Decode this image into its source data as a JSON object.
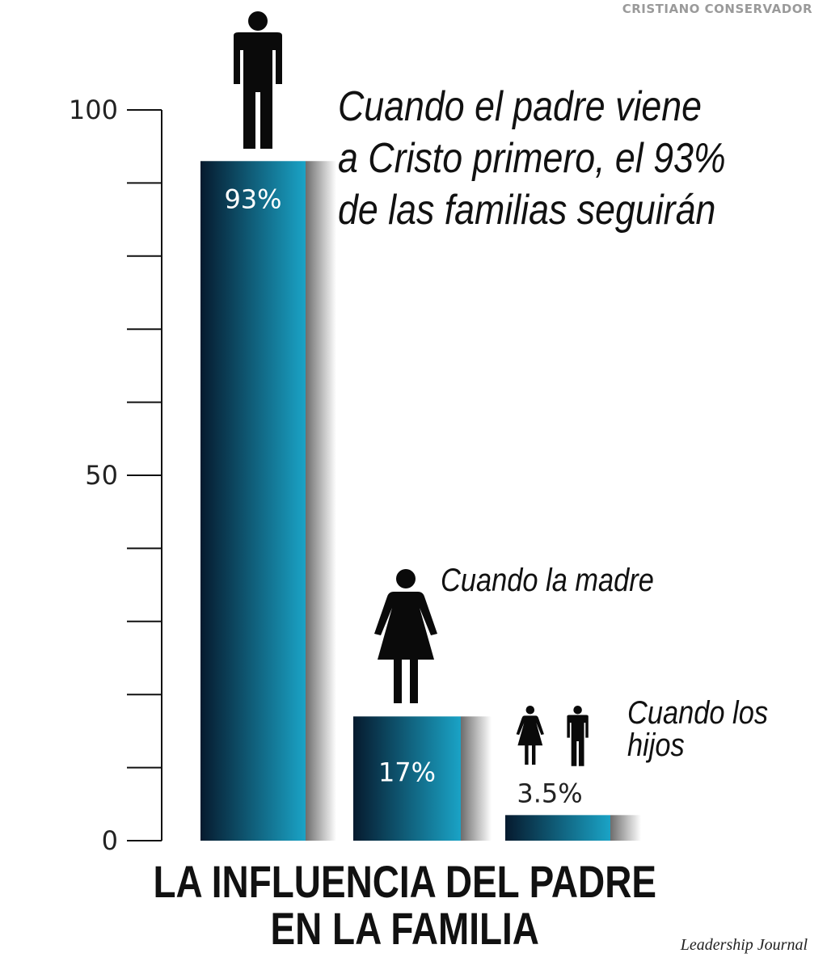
{
  "watermark": "CRISTIANO CONSERVADOR",
  "title_lines": [
    "LA INFLUENCIA DEL PADRE",
    "EN LA FAMILIA"
  ],
  "source": "Leadership Journal",
  "annotations": {
    "father": [
      "Cuando el padre viene",
      "a Cristo primero, el 93%",
      "de las familias seguirán"
    ],
    "mother": [
      "Cuando la madre"
    ],
    "children": [
      "Cuando los",
      "hijos"
    ]
  },
  "icons": [
    "man-icon",
    "woman-icon",
    "girl-icon",
    "boy-icon"
  ],
  "colors": {
    "bar_dark": "#061a2e",
    "bar_light": "#1aa3c6",
    "text": "#111111"
  },
  "chart_data": {
    "type": "bar",
    "categories": [
      "padre",
      "madre",
      "hijos"
    ],
    "values": [
      93,
      17,
      3.5
    ],
    "value_labels": [
      "93%",
      "17%",
      "3.5%"
    ],
    "ylim": [
      0,
      100
    ],
    "y_tick_labels": [
      "0",
      "50",
      "100"
    ],
    "y_minor_tick_step": 10,
    "grid": false,
    "legend": "none"
  }
}
